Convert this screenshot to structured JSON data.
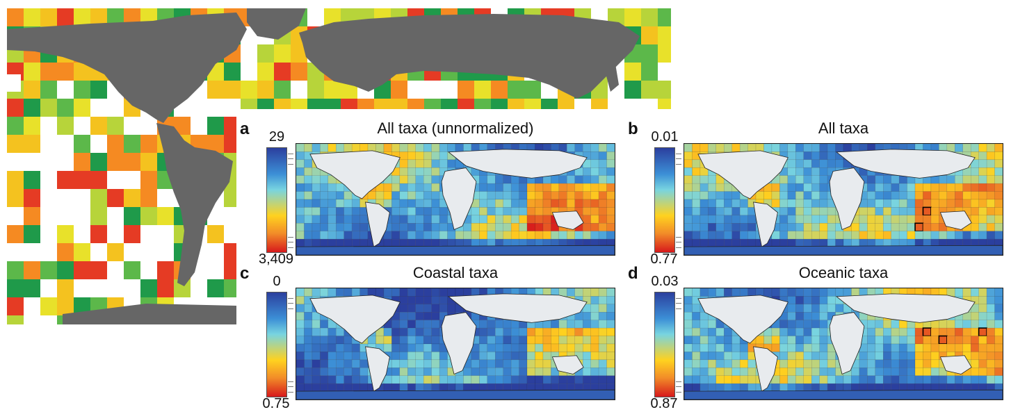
{
  "panels": [
    {
      "letter": "a",
      "title": "All taxa (unnormalized)",
      "cbar_top": "29",
      "cbar_bottom": "3,409"
    },
    {
      "letter": "b",
      "title": "All taxa",
      "cbar_top": "0.01",
      "cbar_bottom": "0.77"
    },
    {
      "letter": "c",
      "title": "Coastal taxa",
      "cbar_top": "0",
      "cbar_bottom": "0.75"
    },
    {
      "letter": "d",
      "title": "Oceanic taxa",
      "cbar_top": "0.03",
      "cbar_bottom": "0.87"
    }
  ],
  "colors": {
    "land_background_map": "#666666",
    "land_panels": "#e8ebee",
    "ocean_none": "#ffffff",
    "hotspot_outline": "#000000",
    "scale_high": "#d7191c",
    "scale_mid": "#ffd21f",
    "scale_low": "#2b3f9e"
  }
}
